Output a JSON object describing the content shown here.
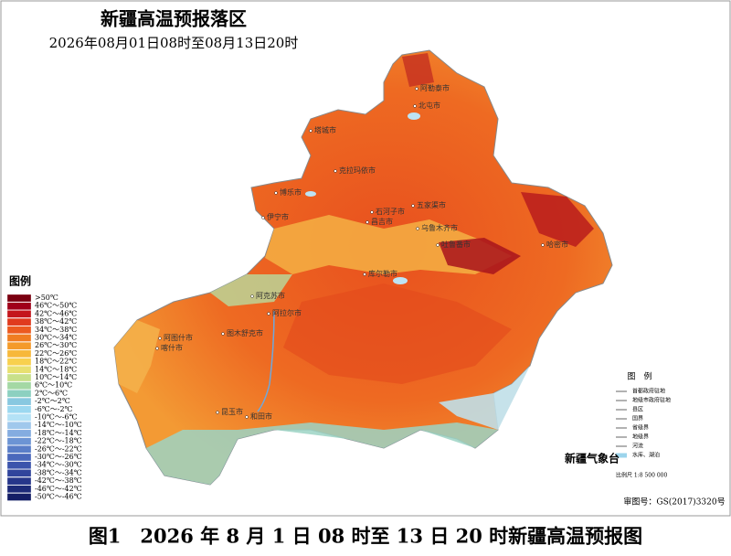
{
  "header": {
    "title": "新疆高温预报落区",
    "subtitle": "2026年08月01日08时至08月13日20时"
  },
  "legend": {
    "title": "图例",
    "items": [
      {
        "label": ">50℃",
        "color": "#7a0010"
      },
      {
        "label": "46℃～50℃",
        "color": "#a0001a"
      },
      {
        "label": "42℃～46℃",
        "color": "#c4161c"
      },
      {
        "label": "38℃～42℃",
        "color": "#e03a1e"
      },
      {
        "label": "34℃～38℃",
        "color": "#ec5a20"
      },
      {
        "label": "30℃～34℃",
        "color": "#f07d22"
      },
      {
        "label": "26℃～30℃",
        "color": "#f49a2a"
      },
      {
        "label": "22℃～26℃",
        "color": "#f7b83a"
      },
      {
        "label": "18℃～22℃",
        "color": "#f8d04e"
      },
      {
        "label": "14℃～18℃",
        "color": "#e8e070"
      },
      {
        "label": "10℃～14℃",
        "color": "#c8e08a"
      },
      {
        "label": "6℃～10℃",
        "color": "#a4d8a4"
      },
      {
        "label": "2℃～6℃",
        "color": "#8cd0c0"
      },
      {
        "label": "-2℃～2℃",
        "color": "#88c8e0"
      },
      {
        "label": "-6℃～-2℃",
        "color": "#9cd8f0"
      },
      {
        "label": "-10℃～-6℃",
        "color": "#b4e2f6"
      },
      {
        "label": "-14℃～-10℃",
        "color": "#a0c8ec"
      },
      {
        "label": "-18℃～-14℃",
        "color": "#84ace0"
      },
      {
        "label": "-22℃～-18℃",
        "color": "#6c94d4"
      },
      {
        "label": "-26℃～-22℃",
        "color": "#5a7ec8"
      },
      {
        "label": "-30℃～-26℃",
        "color": "#4a68bc"
      },
      {
        "label": "-34℃～-30℃",
        "color": "#3c54ac"
      },
      {
        "label": "-38℃～-34℃",
        "color": "#30449c"
      },
      {
        "label": "-42℃～-38℃",
        "color": "#26368a"
      },
      {
        "label": "-46℃～-42℃",
        "color": "#1c2a78"
      },
      {
        "label": "-50℃～-46℃",
        "color": "#141e66"
      }
    ]
  },
  "cities": [
    "阿勒泰市",
    "北屯市",
    "塔城市",
    "克拉玛依市",
    "博乐市",
    "伊宁市",
    "石河子市",
    "昌吉市",
    "五家渠市",
    "乌鲁木齐市",
    "吐鲁番市",
    "哈密市",
    "库尔勒市",
    "阿克苏市",
    "阿拉尔市",
    "阿图什市",
    "喀什市",
    "图木舒克市",
    "和田市",
    "昆玉市"
  ],
  "map_legend": {
    "title": "图　例",
    "items": [
      "首都政府驻地",
      "地级市政府驻地",
      "县区",
      "国界",
      "省级界",
      "地级界",
      "河流",
      "水库、湖泊"
    ],
    "scale": "比例尺 1:8 500 000"
  },
  "agency": "新疆气象台",
  "review_number": "审图号：GS(2017)3320号",
  "caption": "图1　2026 年 8 月 1 日 08 时至 13 日 20 时新疆高温预报图"
}
